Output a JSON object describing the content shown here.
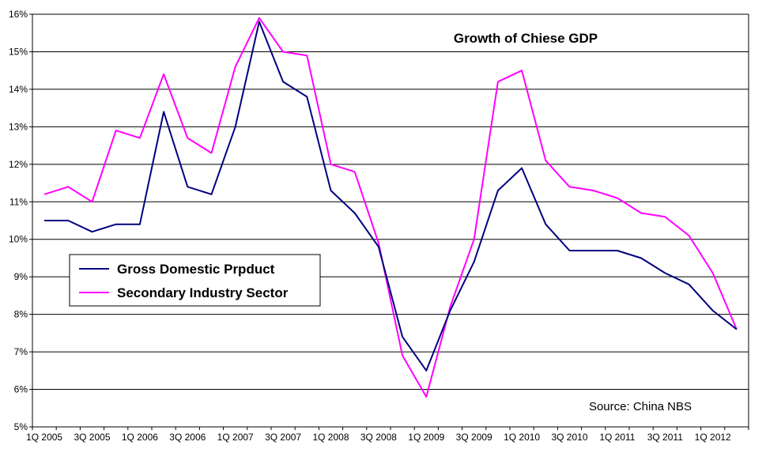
{
  "chart_data": {
    "type": "line",
    "title": "Growth of Chiese GDP",
    "source": "Source: China NBS",
    "xlabel": "",
    "ylabel": "",
    "ylim": [
      5,
      16
    ],
    "yticks": [
      "5%",
      "6%",
      "7%",
      "8%",
      "9%",
      "10%",
      "11%",
      "12%",
      "13%",
      "14%",
      "15%",
      "16%"
    ],
    "grid": true,
    "legend_position": "left-middle",
    "categories": [
      "1Q 2005",
      "2Q 2005",
      "3Q 2005",
      "4Q 2005",
      "1Q 2006",
      "2Q 2006",
      "3Q 2006",
      "4Q 2006",
      "1Q 2007",
      "2Q 2007",
      "3Q 2007",
      "4Q 2007",
      "1Q 2008",
      "2Q 2008",
      "3Q 2008",
      "4Q 2008",
      "1Q 2009",
      "2Q 2009",
      "3Q 2009",
      "4Q 2009",
      "1Q 2010",
      "2Q 2010",
      "3Q 2010",
      "4Q 2010",
      "1Q 2011",
      "2Q 2011",
      "3Q 2011",
      "4Q 2011",
      "1Q 2012",
      "2Q 2012"
    ],
    "xtick_labels": [
      "1Q 2005",
      "3Q 2005",
      "1Q 2006",
      "3Q 2006",
      "1Q 2007",
      "3Q 2007",
      "1Q 2008",
      "3Q 2008",
      "1Q 2009",
      "3Q 2009",
      "1Q 2010",
      "3Q 2010",
      "1Q 2011",
      "3Q 2011",
      "1Q 2012"
    ],
    "series": [
      {
        "name": "Gross Domestic Prpduct",
        "color": "#000080",
        "values": [
          10.5,
          10.5,
          10.2,
          10.4,
          10.4,
          13.4,
          11.4,
          11.2,
          13.0,
          15.8,
          14.2,
          13.8,
          11.3,
          10.7,
          9.8,
          7.4,
          6.5,
          8.1,
          9.4,
          11.3,
          11.9,
          10.4,
          9.7,
          9.7,
          9.7,
          9.5,
          9.1,
          8.8,
          8.1,
          7.6
        ]
      },
      {
        "name": "Secondary Industry Sector",
        "color": "#ff00ff",
        "values": [
          11.2,
          11.4,
          11.0,
          12.9,
          12.7,
          14.4,
          12.7,
          12.3,
          14.6,
          15.9,
          15.0,
          14.9,
          12.0,
          11.8,
          9.9,
          6.9,
          5.8,
          8.2,
          10.0,
          14.2,
          14.5,
          12.1,
          11.4,
          11.3,
          11.1,
          10.7,
          10.6,
          10.1,
          9.1,
          7.6
        ]
      }
    ]
  }
}
